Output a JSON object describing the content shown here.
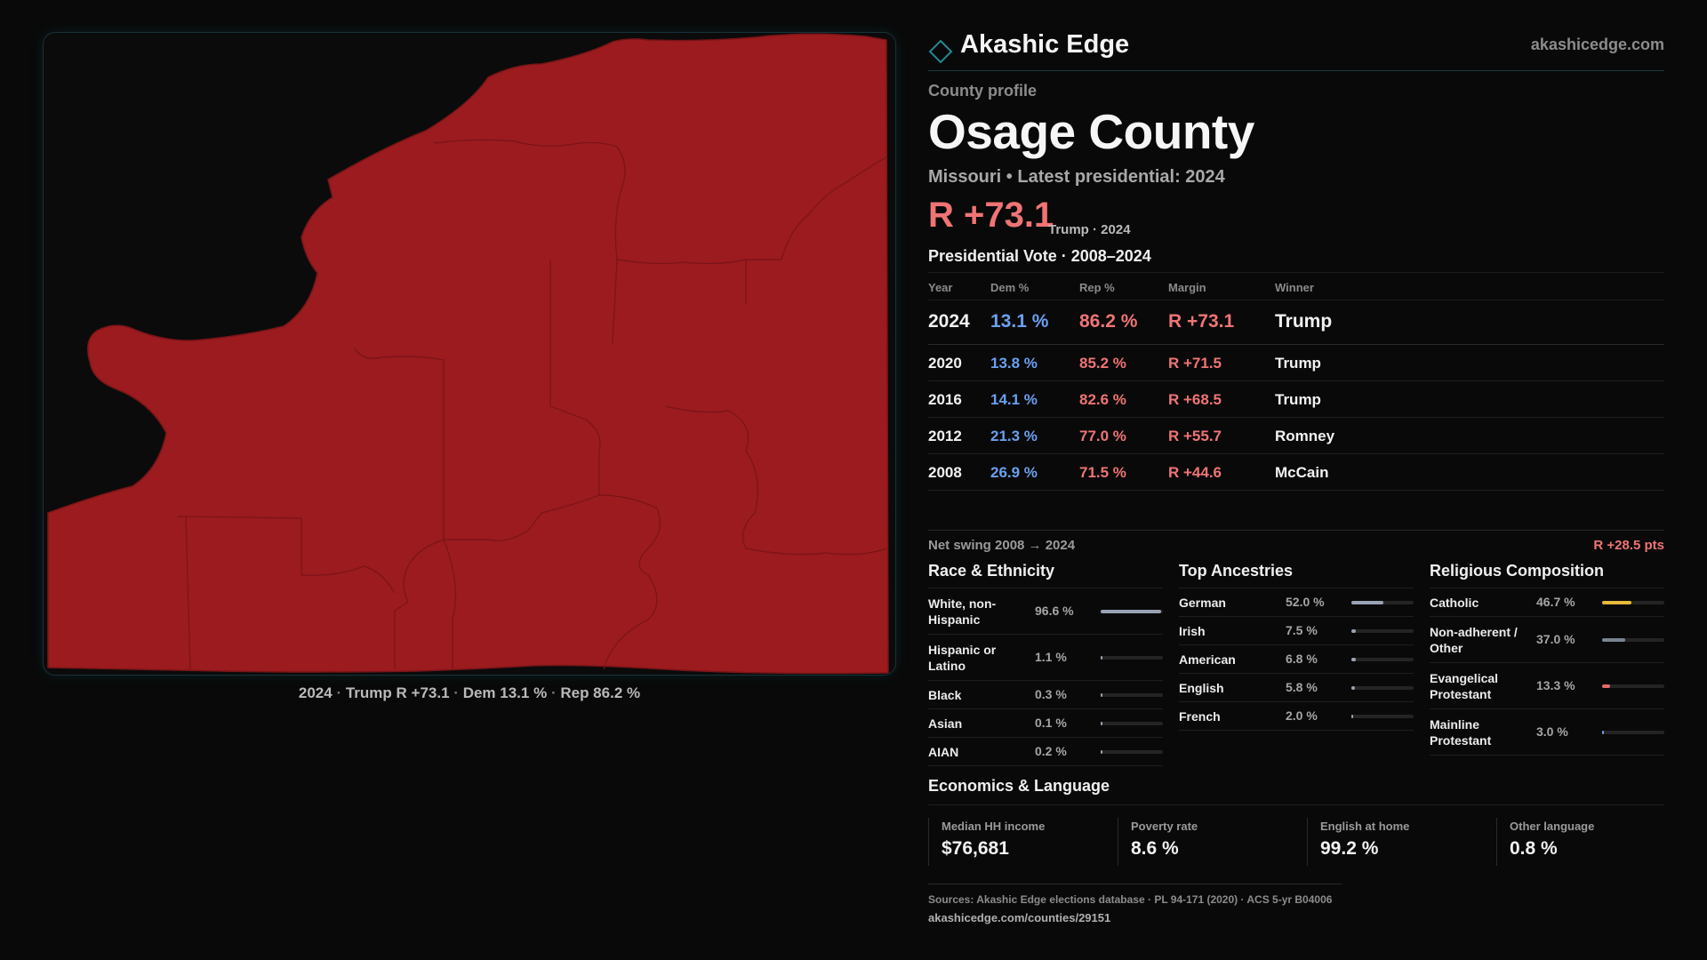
{
  "brand": {
    "name": "Akashic Edge",
    "url": "akashicedge.com"
  },
  "profile": {
    "eyebrow": "County profile",
    "title": "Osage County",
    "subtitle": "Missouri • Latest presidential: 2024",
    "margin": "R +73.1",
    "margin_note": "Trump · 2024"
  },
  "map": {
    "caption_year": "2024",
    "caption_winner": "Trump",
    "caption_margin": "R +73.1",
    "caption_dem": "Dem 13.1 %",
    "caption_rep": "Rep 86.2 %",
    "fill_color": "#9b1b1e",
    "outline_color": "#7a1418"
  },
  "presidential": {
    "title": "Presidential Vote · 2008–2024",
    "headers": {
      "year": "Year",
      "dem": "Dem %",
      "rep": "Rep %",
      "margin": "Margin",
      "winner": "Winner"
    },
    "rows": [
      {
        "year": "2024",
        "dem": "13.1 %",
        "rep": "86.2 %",
        "margin": "R +73.1",
        "winner": "Trump"
      },
      {
        "year": "2020",
        "dem": "13.8 %",
        "rep": "85.2 %",
        "margin": "R +71.5",
        "winner": "Trump"
      },
      {
        "year": "2016",
        "dem": "14.1 %",
        "rep": "82.6 %",
        "margin": "R +68.5",
        "winner": "Trump"
      },
      {
        "year": "2012",
        "dem": "21.3 %",
        "rep": "77.0 %",
        "margin": "R +55.7",
        "winner": "Romney"
      },
      {
        "year": "2008",
        "dem": "26.9 %",
        "rep": "71.5 %",
        "margin": "R +44.6",
        "winner": "McCain"
      }
    ]
  },
  "swing": {
    "label": "Net swing 2008 → 2024",
    "value": "R +28.5 pts"
  },
  "race": {
    "title": "Race & Ethnicity",
    "bar_color": "#9aa3b4",
    "items": [
      {
        "label": "White, non-Hispanic",
        "value": "96.6 %",
        "pct": 96.6
      },
      {
        "label": "Hispanic or Latino",
        "value": "1.1 %",
        "pct": 1.1
      },
      {
        "label": "Black",
        "value": "0.3 %",
        "pct": 0.3
      },
      {
        "label": "Asian",
        "value": "0.1 %",
        "pct": 0.1
      },
      {
        "label": "AIAN",
        "value": "0.2 %",
        "pct": 0.2
      }
    ]
  },
  "ancestry": {
    "title": "Top Ancestries",
    "bar_color": "#9aa3b4",
    "items": [
      {
        "label": "German",
        "value": "52.0 %",
        "pct": 52.0
      },
      {
        "label": "Irish",
        "value": "7.5 %",
        "pct": 7.5
      },
      {
        "label": "American",
        "value": "6.8 %",
        "pct": 6.8
      },
      {
        "label": "English",
        "value": "5.8 %",
        "pct": 5.8
      },
      {
        "label": "French",
        "value": "2.0 %",
        "pct": 2.0
      }
    ]
  },
  "religion": {
    "title": "Religious Composition",
    "items": [
      {
        "label": "Catholic",
        "value": "46.7 %",
        "pct": 46.7,
        "color": "#e5b93a"
      },
      {
        "label": "Non-adherent / Other",
        "value": "37.0 %",
        "pct": 37.0,
        "color": "#7a8394"
      },
      {
        "label": "Evangelical Protestant",
        "value": "13.3 %",
        "pct": 13.3,
        "color": "#e56a6a"
      },
      {
        "label": "Mainline Protestant",
        "value": "3.0 %",
        "pct": 3.0,
        "color": "#6aa0f0"
      }
    ]
  },
  "economics": {
    "title": "Economics & Language",
    "stats": [
      {
        "label": "Median HH income",
        "value": "$76,681"
      },
      {
        "label": "Poverty rate",
        "value": "8.6 %"
      },
      {
        "label": "English at home",
        "value": "99.2 %"
      },
      {
        "label": "Other language",
        "value": "0.8 %"
      }
    ]
  },
  "sources": {
    "line1": "Sources: Akashic Edge elections database · PL 94-171 (2020) · ACS 5-yr B04006",
    "line2": "akashicedge.com/counties/29151"
  }
}
